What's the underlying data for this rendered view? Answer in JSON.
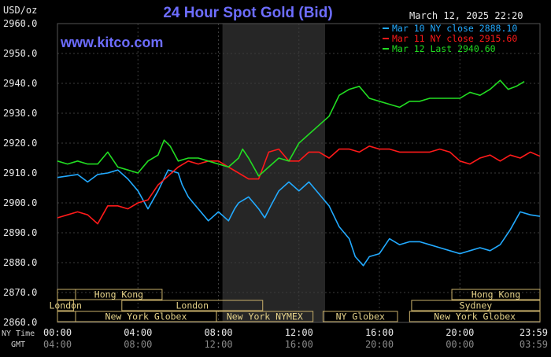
{
  "chart_data": {
    "type": "line",
    "title": "24 Hour Spot Gold (Bid)",
    "ylabel": "USD/oz",
    "timestamp": "March 12, 2025 22:20",
    "watermark": "www.kitco.com",
    "ylim": [
      2860,
      2960
    ],
    "yticks": [
      "2960.0",
      "2950.0",
      "2940.0",
      "2930.0",
      "2920.0",
      "2910.0",
      "2900.0",
      "2890.0",
      "2880.0",
      "2870.0",
      "2860.0"
    ],
    "x_time_labels": {
      "ny_label": "NY Time",
      "gmt_label": "GMT",
      "ny": [
        "00:00",
        "04:00",
        "08:00",
        "12:00",
        "16:00",
        "20:00",
        "23:59"
      ],
      "gmt": [
        "04:00",
        "08:00",
        "12:00",
        "16:00",
        "20:00",
        "00:00",
        "03:59"
      ],
      "hours": [
        0,
        4,
        8,
        12,
        16,
        20,
        23.98
      ]
    },
    "shaded_region_hours": [
      8.2,
      13.3
    ],
    "series": [
      {
        "name": "Mar 10 NY close 2888.10",
        "color": "#22aaff",
        "points": [
          [
            0,
            2908.5
          ],
          [
            0.5,
            2909
          ],
          [
            1,
            2909.5
          ],
          [
            1.5,
            2907
          ],
          [
            2,
            2909.5
          ],
          [
            2.5,
            2910
          ],
          [
            3,
            2911
          ],
          [
            3.5,
            2908
          ],
          [
            4,
            2904
          ],
          [
            4.5,
            2898
          ],
          [
            5,
            2904
          ],
          [
            5.5,
            2911
          ],
          [
            6,
            2910
          ],
          [
            6.2,
            2906
          ],
          [
            6.5,
            2902
          ],
          [
            7,
            2898
          ],
          [
            7.5,
            2894
          ],
          [
            8,
            2897
          ],
          [
            8.5,
            2894
          ],
          [
            8.8,
            2898
          ],
          [
            9,
            2900
          ],
          [
            9.5,
            2902
          ],
          [
            10,
            2898
          ],
          [
            10.3,
            2895
          ],
          [
            10.6,
            2899
          ],
          [
            11,
            2904
          ],
          [
            11.5,
            2907
          ],
          [
            12,
            2904
          ],
          [
            12.5,
            2907
          ],
          [
            13,
            2903
          ],
          [
            13.5,
            2899
          ],
          [
            14,
            2892
          ],
          [
            14.5,
            2888
          ],
          [
            14.8,
            2882
          ],
          [
            15.2,
            2879
          ],
          [
            15.5,
            2882
          ],
          [
            16,
            2883
          ],
          [
            16.5,
            2888
          ],
          [
            17,
            2886
          ],
          [
            17.5,
            2887
          ],
          [
            18,
            2887
          ],
          [
            18.5,
            2886
          ],
          [
            19,
            2885
          ],
          [
            19.5,
            2884
          ],
          [
            20,
            2883
          ],
          [
            20.5,
            2884
          ],
          [
            21,
            2885
          ],
          [
            21.5,
            2884
          ],
          [
            22,
            2886
          ],
          [
            22.5,
            2891
          ],
          [
            23,
            2897
          ],
          [
            23.5,
            2896
          ],
          [
            23.98,
            2895.5
          ]
        ]
      },
      {
        "name": "Mar 11 NY close 2915.60",
        "color": "#ff1a1a",
        "points": [
          [
            0,
            2895
          ],
          [
            0.5,
            2896
          ],
          [
            1,
            2897
          ],
          [
            1.5,
            2896
          ],
          [
            2,
            2893
          ],
          [
            2.5,
            2899
          ],
          [
            3,
            2899
          ],
          [
            3.5,
            2898
          ],
          [
            4,
            2900
          ],
          [
            4.5,
            2901
          ],
          [
            5,
            2906
          ],
          [
            5.5,
            2909
          ],
          [
            6,
            2912
          ],
          [
            6.5,
            2914
          ],
          [
            7,
            2913
          ],
          [
            7.5,
            2914
          ],
          [
            8,
            2914
          ],
          [
            8.5,
            2912
          ],
          [
            9,
            2910
          ],
          [
            9.5,
            2908
          ],
          [
            10,
            2908
          ],
          [
            10.5,
            2917
          ],
          [
            11,
            2918
          ],
          [
            11.5,
            2914
          ],
          [
            12,
            2914
          ],
          [
            12.5,
            2917
          ],
          [
            13,
            2917
          ],
          [
            13.5,
            2915
          ],
          [
            14,
            2918
          ],
          [
            14.5,
            2918
          ],
          [
            15,
            2917
          ],
          [
            15.5,
            2919
          ],
          [
            16,
            2918
          ],
          [
            16.5,
            2918
          ],
          [
            17,
            2917
          ],
          [
            17.5,
            2917
          ],
          [
            18,
            2917
          ],
          [
            18.5,
            2917
          ],
          [
            19,
            2918
          ],
          [
            19.5,
            2917
          ],
          [
            20,
            2914
          ],
          [
            20.5,
            2913
          ],
          [
            21,
            2915
          ],
          [
            21.5,
            2916
          ],
          [
            22,
            2914
          ],
          [
            22.5,
            2916
          ],
          [
            23,
            2915
          ],
          [
            23.5,
            2917
          ],
          [
            23.98,
            2915.6
          ]
        ]
      },
      {
        "name": "Mar 12 Last 2940.60",
        "color": "#22dd22",
        "points": [
          [
            0,
            2914
          ],
          [
            0.5,
            2913
          ],
          [
            1,
            2914
          ],
          [
            1.5,
            2913
          ],
          [
            2,
            2913
          ],
          [
            2.5,
            2917
          ],
          [
            3,
            2912
          ],
          [
            3.5,
            2911
          ],
          [
            4,
            2910
          ],
          [
            4.5,
            2914
          ],
          [
            5,
            2916
          ],
          [
            5.3,
            2921
          ],
          [
            5.6,
            2919
          ],
          [
            6,
            2914
          ],
          [
            6.5,
            2915
          ],
          [
            7,
            2915
          ],
          [
            7.5,
            2914
          ],
          [
            8,
            2913
          ],
          [
            8.5,
            2912
          ],
          [
            9,
            2915
          ],
          [
            9.2,
            2918
          ],
          [
            9.5,
            2915
          ],
          [
            10,
            2909
          ],
          [
            10.5,
            2912
          ],
          [
            11,
            2915
          ],
          [
            11.5,
            2914
          ],
          [
            12,
            2920
          ],
          [
            12.5,
            2923
          ],
          [
            13,
            2926
          ],
          [
            13.5,
            2929
          ],
          [
            14,
            2936
          ],
          [
            14.5,
            2938
          ],
          [
            15,
            2939
          ],
          [
            15.5,
            2935
          ],
          [
            16,
            2934
          ],
          [
            16.5,
            2933
          ],
          [
            17,
            2932
          ],
          [
            17.5,
            2934
          ],
          [
            18,
            2934
          ],
          [
            18.5,
            2935
          ],
          [
            19,
            2935
          ],
          [
            19.5,
            2935
          ],
          [
            20,
            2935
          ],
          [
            20.5,
            2937
          ],
          [
            21,
            2936
          ],
          [
            21.5,
            2938
          ],
          [
            22,
            2941
          ],
          [
            22.4,
            2938
          ],
          [
            22.8,
            2939
          ],
          [
            23.2,
            2940.6
          ]
        ]
      }
    ],
    "sessions": [
      {
        "name": "Hong Kong",
        "row": 0,
        "start": 0,
        "end": 5.2,
        "lead": 0.9
      },
      {
        "name": "Hong Kong",
        "row": 0,
        "start": 19.6,
        "end": 23.98
      },
      {
        "name": "London",
        "row": 1,
        "start": 3.2,
        "end": 10.2
      },
      {
        "name": "London",
        "row": 1,
        "start": 0,
        "end": 0.8
      },
      {
        "name": "Sydney",
        "row": 1,
        "start": 17.6,
        "end": 23.98
      },
      {
        "name": "New York Globex",
        "row": 2,
        "start": 0,
        "end": 7.9,
        "lead": 0.9
      },
      {
        "name": "New York NYMEX",
        "row": 2,
        "start": 7.9,
        "end": 12.7
      },
      {
        "name": "NY Globex",
        "row": 2,
        "start": 13.2,
        "end": 16.9
      },
      {
        "name": "New York Globex",
        "row": 2,
        "start": 17.5,
        "end": 23.98
      }
    ]
  }
}
